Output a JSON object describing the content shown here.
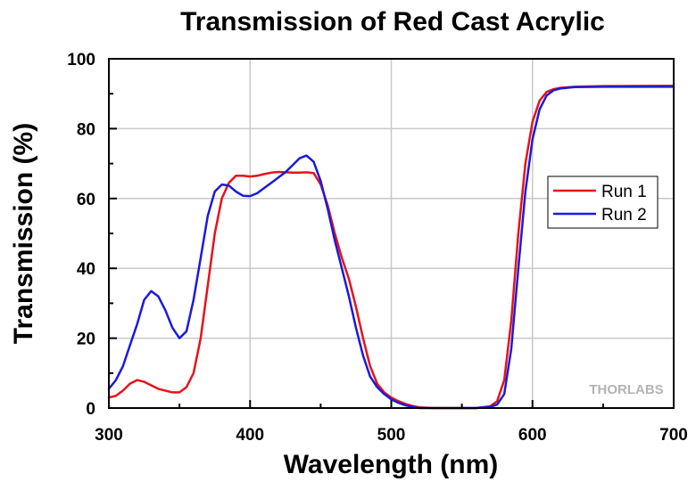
{
  "chart_data": {
    "type": "line",
    "title": "Transmission of Red Cast Acrylic",
    "xlabel": "Wavelength (nm)",
    "ylabel": "Transmission (%)",
    "xlim": [
      300,
      700
    ],
    "ylim": [
      0,
      100
    ],
    "x_ticks": [
      "300",
      "400",
      "500",
      "600",
      "700"
    ],
    "y_ticks": [
      "0",
      "20",
      "40",
      "60",
      "80",
      "100"
    ],
    "grid": true,
    "legend_position": "right",
    "watermark": "THORLABS",
    "series": [
      {
        "name": "Run 1",
        "color": "#e8111b",
        "points": [
          [
            300,
            3
          ],
          [
            305,
            3.5
          ],
          [
            310,
            5
          ],
          [
            315,
            7
          ],
          [
            320,
            8
          ],
          [
            325,
            7.5
          ],
          [
            330,
            6.5
          ],
          [
            335,
            5.5
          ],
          [
            340,
            5
          ],
          [
            345,
            4.5
          ],
          [
            350,
            4.5
          ],
          [
            355,
            6
          ],
          [
            360,
            10
          ],
          [
            365,
            20
          ],
          [
            370,
            35
          ],
          [
            375,
            50
          ],
          [
            380,
            60
          ],
          [
            385,
            64.5
          ],
          [
            390,
            66.5
          ],
          [
            395,
            66.5
          ],
          [
            400,
            66.3
          ],
          [
            405,
            66.5
          ],
          [
            410,
            67
          ],
          [
            415,
            67.4
          ],
          [
            420,
            67.6
          ],
          [
            425,
            67.5
          ],
          [
            430,
            67.4
          ],
          [
            435,
            67.4
          ],
          [
            440,
            67.5
          ],
          [
            445,
            67.3
          ],
          [
            450,
            64
          ],
          [
            455,
            58
          ],
          [
            460,
            50
          ],
          [
            465,
            43
          ],
          [
            470,
            37
          ],
          [
            475,
            29
          ],
          [
            480,
            20
          ],
          [
            485,
            12
          ],
          [
            490,
            7
          ],
          [
            495,
            4.5
          ],
          [
            500,
            3
          ],
          [
            505,
            2
          ],
          [
            510,
            1.2
          ],
          [
            515,
            0.6
          ],
          [
            520,
            0.2
          ],
          [
            530,
            0
          ],
          [
            560,
            0
          ],
          [
            570,
            0.5
          ],
          [
            575,
            2
          ],
          [
            580,
            8
          ],
          [
            585,
            25
          ],
          [
            590,
            50
          ],
          [
            595,
            70
          ],
          [
            600,
            82
          ],
          [
            605,
            88
          ],
          [
            610,
            90.5
          ],
          [
            615,
            91.3
          ],
          [
            620,
            91.7
          ],
          [
            630,
            92
          ],
          [
            650,
            92.2
          ],
          [
            700,
            92.3
          ]
        ]
      },
      {
        "name": "Run 2",
        "color": "#1a1adb",
        "points": [
          [
            300,
            5.5
          ],
          [
            305,
            8
          ],
          [
            310,
            12
          ],
          [
            315,
            18
          ],
          [
            320,
            24
          ],
          [
            325,
            31
          ],
          [
            330,
            33.5
          ],
          [
            335,
            32
          ],
          [
            340,
            28
          ],
          [
            345,
            23
          ],
          [
            350,
            20
          ],
          [
            355,
            22
          ],
          [
            360,
            31
          ],
          [
            365,
            43
          ],
          [
            370,
            55
          ],
          [
            375,
            62
          ],
          [
            380,
            64
          ],
          [
            385,
            63.7
          ],
          [
            390,
            62
          ],
          [
            395,
            60.8
          ],
          [
            400,
            60.7
          ],
          [
            405,
            61.5
          ],
          [
            410,
            63
          ],
          [
            415,
            64.5
          ],
          [
            420,
            66
          ],
          [
            425,
            67.5
          ],
          [
            430,
            69.5
          ],
          [
            435,
            71.5
          ],
          [
            440,
            72.3
          ],
          [
            445,
            70.5
          ],
          [
            450,
            65
          ],
          [
            455,
            57
          ],
          [
            460,
            48
          ],
          [
            465,
            40
          ],
          [
            470,
            32
          ],
          [
            475,
            23
          ],
          [
            480,
            15
          ],
          [
            485,
            9
          ],
          [
            490,
            6
          ],
          [
            495,
            4
          ],
          [
            500,
            2.5
          ],
          [
            505,
            1.5
          ],
          [
            510,
            0.8
          ],
          [
            515,
            0.3
          ],
          [
            520,
            0
          ],
          [
            560,
            0
          ],
          [
            570,
            0.3
          ],
          [
            575,
            1
          ],
          [
            580,
            4
          ],
          [
            585,
            17
          ],
          [
            590,
            40
          ],
          [
            595,
            62
          ],
          [
            600,
            77
          ],
          [
            605,
            85.5
          ],
          [
            610,
            89.5
          ],
          [
            615,
            91
          ],
          [
            620,
            91.5
          ],
          [
            630,
            91.9
          ],
          [
            650,
            92
          ],
          [
            700,
            92
          ]
        ]
      }
    ]
  }
}
